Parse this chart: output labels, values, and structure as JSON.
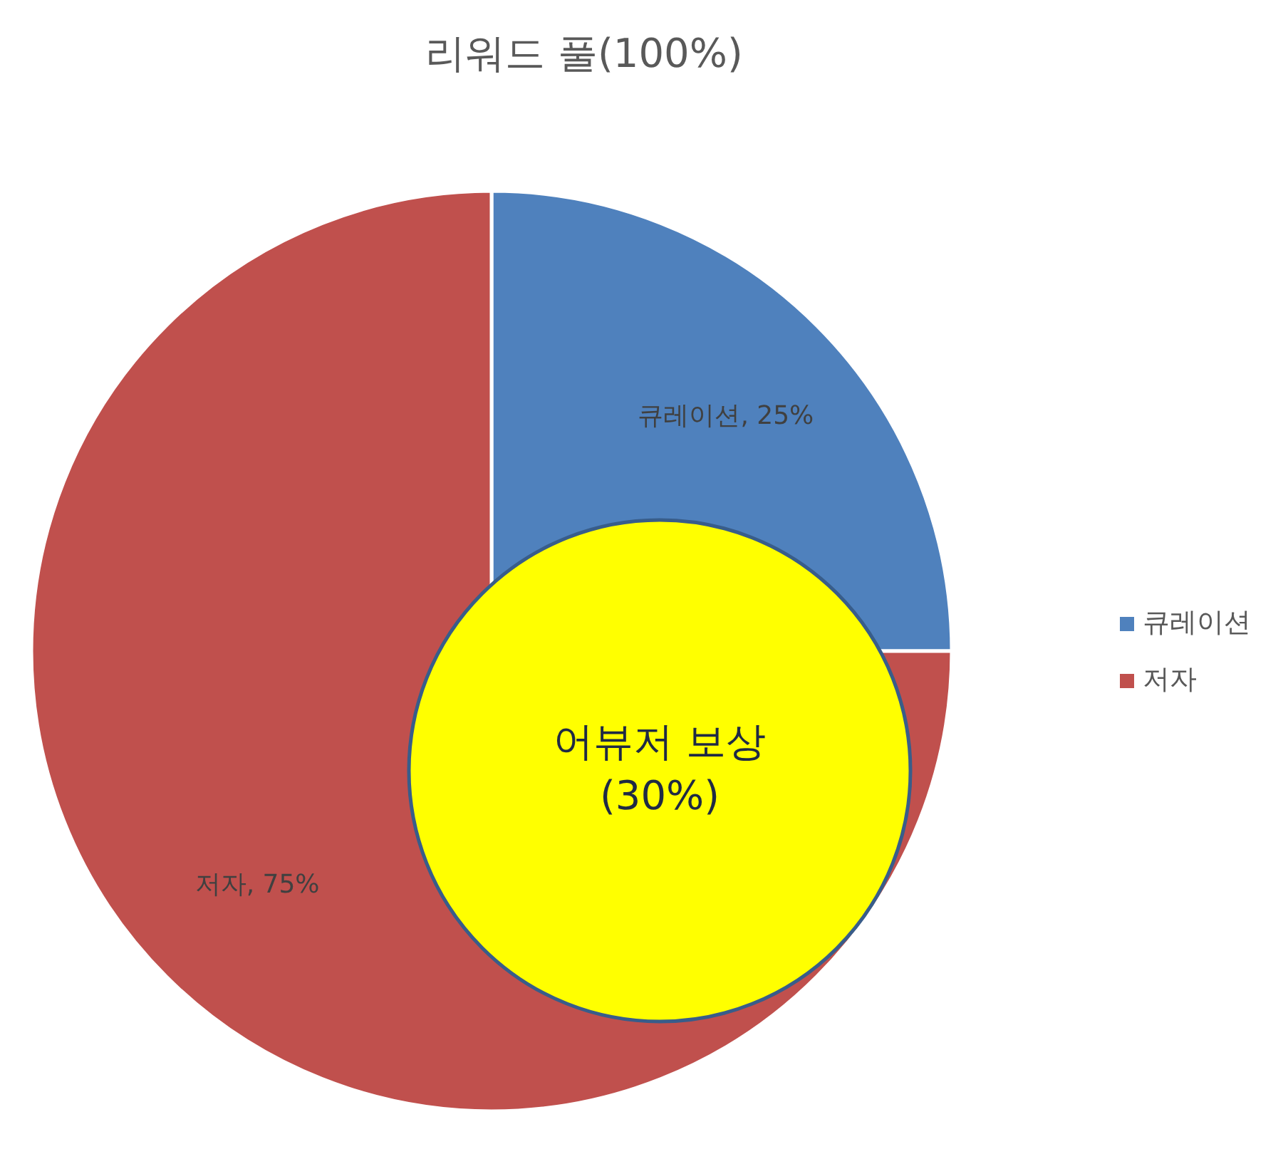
{
  "chart_data": {
    "type": "pie",
    "title": "리워드 풀(100%)",
    "categories": [
      "큐레이션",
      "저자"
    ],
    "values": [
      25,
      75
    ],
    "colors": [
      "#4f81bd",
      "#c0504d"
    ],
    "value_labels": [
      "큐레이션, 25%",
      "저자, 75%"
    ],
    "legend": "right",
    "annotations": [
      "어뷰저 보상\n(30%)"
    ]
  }
}
